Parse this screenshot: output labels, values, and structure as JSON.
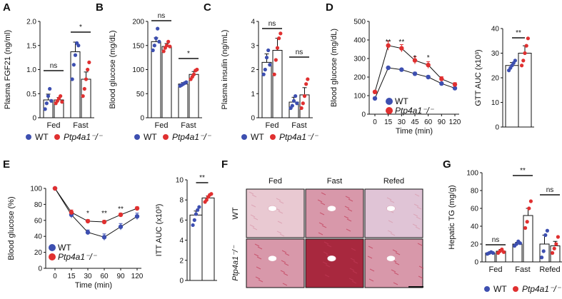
{
  "colors": {
    "wt": "#3d4fb0",
    "ko": "#e03030",
    "axis": "#111111",
    "stainLight": "#e9c9d2",
    "stainMid": "#d898aa",
    "stainDark": "#c23a56",
    "stainDeep": "#a8283e",
    "fedTint": "#e0c4d6"
  },
  "legend": {
    "wt": "WT",
    "ko": "Ptp4a1⁻/⁻"
  },
  "chart_data": [
    {
      "panel": "A",
      "type": "bar",
      "ylabel": "Plasma FGF21 (ng/ml)",
      "ylim": [
        0,
        2.0
      ],
      "yticks": [
        "0",
        "0.5",
        "1.0",
        "1.5",
        "2.0"
      ],
      "categories": [
        "Fed",
        "Fast"
      ],
      "series": [
        {
          "name": "WT",
          "values": [
            0.37,
            1.37
          ],
          "errors": [
            0.12,
            0.2
          ],
          "points": [
            [
              0.18,
              0.3,
              0.45,
              0.6,
              0.35
            ],
            [
              0.8,
              1.1,
              1.3,
              1.55,
              1.5
            ]
          ]
        },
        {
          "name": "Ptp4a1⁻/⁻",
          "values": [
            0.37,
            0.8
          ],
          "errors": [
            0.05,
            0.15
          ],
          "points": [
            [
              0.3,
              0.35,
              0.4,
              0.45,
              0.33
            ],
            [
              0.45,
              0.6,
              0.8,
              1.0,
              1.15
            ]
          ]
        }
      ],
      "significance": [
        "ns",
        "*"
      ]
    },
    {
      "panel": "B",
      "type": "bar",
      "ylabel": "Blood glucose (mg/dL)",
      "ylim": [
        0,
        200
      ],
      "yticks": [
        "0",
        "50",
        "100",
        "150",
        "200"
      ],
      "categories": [
        "Fed",
        "Fast"
      ],
      "series": [
        {
          "name": "WT",
          "values": [
            158,
            70
          ],
          "errors": [
            8,
            3
          ],
          "points": [
            [
              140,
              150,
              165,
              185,
              158
            ],
            [
              66,
              68,
              70,
              72,
              74
            ]
          ]
        },
        {
          "name": "Ptp4a1⁻/⁻",
          "values": [
            148,
            90
          ],
          "errors": [
            6,
            6
          ],
          "points": [
            [
              138,
              145,
              150,
              158,
              148
            ],
            [
              80,
              85,
              90,
              98,
              100
            ]
          ]
        }
      ],
      "significance": [
        "ns",
        "*"
      ]
    },
    {
      "panel": "C",
      "type": "bar",
      "ylabel": "Plasma insulin (ng/mL)",
      "ylim": [
        0,
        4
      ],
      "yticks": [
        "0",
        "1",
        "2",
        "3",
        "4"
      ],
      "categories": [
        "Fed",
        "Fast"
      ],
      "series": [
        {
          "name": "WT",
          "values": [
            2.3,
            0.65
          ],
          "errors": [
            0.35,
            0.2
          ],
          "points": [
            [
              1.8,
              2.0,
              2.5,
              2.8,
              2.2
            ],
            [
              0.4,
              0.5,
              0.7,
              0.9,
              0.6
            ]
          ]
        },
        {
          "name": "Ptp4a1⁻/⁻",
          "values": [
            2.8,
            0.95
          ],
          "errors": [
            0.5,
            0.3
          ],
          "points": [
            [
              1.8,
              2.4,
              2.9,
              3.3,
              3.5
            ],
            [
              0.4,
              0.6,
              0.9,
              1.4,
              1.6
            ]
          ]
        }
      ],
      "significance": [
        "ns",
        "ns"
      ]
    },
    {
      "panel": "D",
      "type": "line",
      "ylabel": "Blood glucose (mg/dL)",
      "xlabel": "Time (min)",
      "ylim": [
        0,
        500
      ],
      "yticks": [
        "0",
        "100",
        "200",
        "300",
        "400",
        "500"
      ],
      "x": [
        0,
        15,
        30,
        45,
        60,
        90,
        120
      ],
      "xticks": [
        "0",
        "15",
        "30",
        "45",
        "60",
        "90",
        "120"
      ],
      "series": [
        {
          "name": "WT",
          "values": [
            85,
            250,
            240,
            218,
            200,
            165,
            140
          ],
          "errors": [
            5,
            6,
            7,
            8,
            8,
            7,
            6
          ]
        },
        {
          "name": "Ptp4a1⁻/⁻",
          "values": [
            120,
            370,
            355,
            290,
            265,
            190,
            160
          ],
          "errors": [
            6,
            25,
            20,
            20,
            18,
            12,
            10
          ]
        }
      ],
      "significance": [
        "",
        "**",
        "**",
        "*",
        "*",
        "",
        ""
      ]
    },
    {
      "panel": "D-AUC",
      "type": "bar",
      "ylabel": "GTT AUC (x10³)",
      "ylim": [
        0,
        40
      ],
      "yticks": [
        "0",
        "10",
        "20",
        "30",
        "40"
      ],
      "categories": [
        "WT",
        "Ptp4a1⁻/⁻"
      ],
      "values": [
        25,
        30
      ],
      "errors": [
        1.2,
        3
      ],
      "points": [
        [
          23,
          24,
          25,
          26,
          27
        ],
        [
          25,
          27,
          30,
          33,
          36
        ]
      ],
      "significance": "**"
    },
    {
      "panel": "E",
      "type": "line",
      "ylabel": "Blood glucose (%)",
      "xlabel": "Time (min)",
      "ylim": [
        0,
        100
      ],
      "yticks": [
        "0",
        "20",
        "40",
        "60",
        "80",
        "100"
      ],
      "x": [
        0,
        15,
        30,
        60,
        90,
        120
      ],
      "xticks": [
        "0",
        "15",
        "30",
        "60",
        "90",
        "120"
      ],
      "series": [
        {
          "name": "WT",
          "values": [
            100,
            67,
            45,
            39,
            52,
            65
          ],
          "errors": [
            0,
            4,
            3,
            4,
            4,
            4
          ]
        },
        {
          "name": "Ptp4a1⁻/⁻",
          "values": [
            100,
            70,
            59,
            58,
            67,
            75
          ],
          "errors": [
            0,
            3,
            2,
            2,
            2,
            2
          ]
        }
      ],
      "significance": [
        "",
        "",
        "*",
        "**",
        "**",
        ""
      ]
    },
    {
      "panel": "E-AUC",
      "type": "bar",
      "ylabel": "ITT AUC (x10³)",
      "ylim": [
        0,
        10
      ],
      "yticks": [
        "0",
        "2",
        "4",
        "6",
        "8",
        "10"
      ],
      "categories": [
        "WT",
        "Ptp4a1⁻/⁻"
      ],
      "values": [
        6.5,
        8.2
      ],
      "errors": [
        0.4,
        0.2
      ],
      "points": [
        [
          5.5,
          6.0,
          6.6,
          7.0,
          7.3
        ],
        [
          7.8,
          8.0,
          8.3,
          8.5,
          8.6
        ]
      ],
      "significance": "**"
    },
    {
      "panel": "G",
      "type": "bar",
      "ylabel": "Hepatic TG (mg/g)",
      "ylim": [
        0,
        100
      ],
      "yticks": [
        "0",
        "20",
        "40",
        "60",
        "80",
        "100"
      ],
      "categories": [
        "Fed",
        "Fast",
        "Refed"
      ],
      "series": [
        {
          "name": "WT",
          "values": [
            10,
            20,
            20
          ],
          "errors": [
            1,
            2,
            10
          ],
          "points": [
            [
              9,
              10,
              11,
              10
            ],
            [
              18,
              20,
              23,
              21
            ],
            [
              5,
              12,
              30,
              35
            ]
          ]
        },
        {
          "name": "Ptp4a1⁻/⁻",
          "values": [
            12,
            52,
            18
          ],
          "errors": [
            2,
            8,
            5
          ],
          "points": [
            [
              10,
              12,
              14,
              11
            ],
            [
              38,
              45,
              60,
              68
            ],
            [
              10,
              15,
              20,
              28
            ]
          ]
        }
      ],
      "significance": [
        "ns",
        "**",
        "ns"
      ]
    }
  ],
  "panelF": {
    "columns": [
      "Fed",
      "Fast",
      "Refed"
    ],
    "rows": [
      "WT",
      "Ptp4a1⁻/⁻"
    ]
  },
  "panel_letters": [
    "A",
    "B",
    "C",
    "D",
    "E",
    "F",
    "G"
  ],
  "xlabels": {
    "groups": [
      "Fed",
      "Fast",
      "Refed"
    ]
  }
}
